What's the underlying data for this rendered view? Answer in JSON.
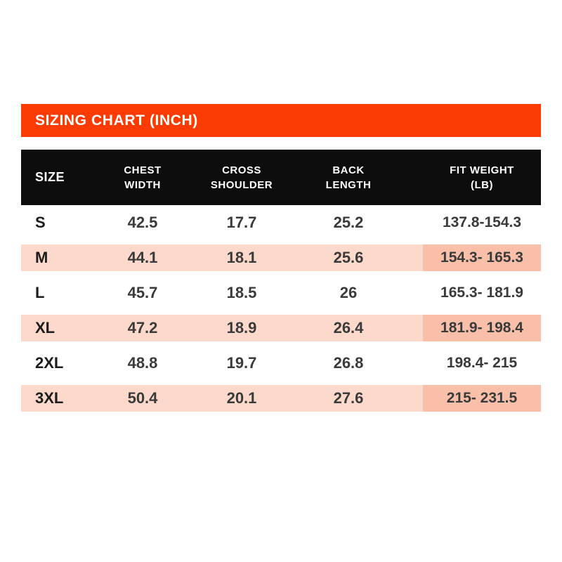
{
  "title_bar": {
    "label": "SIZING CHART (INCH)"
  },
  "table": {
    "header": {
      "columns": [
        {
          "id": "size",
          "label": "SIZE",
          "lines": [
            "SIZE"
          ]
        },
        {
          "id": "chest_width",
          "label": "CHEST WIDTH",
          "lines": [
            "CHEST",
            "WIDTH"
          ]
        },
        {
          "id": "cross_shoulder",
          "label": "CROSS SHOULDER",
          "lines": [
            "CROSS",
            "SHOULDER"
          ]
        },
        {
          "id": "back_length",
          "label": "BACK LENGTH",
          "lines": [
            "BACK",
            "LENGTH"
          ]
        },
        {
          "id": "fit_weight",
          "label": "FIT WEIGHT (LB)",
          "lines": [
            "FIT WEIGHT",
            "(LB)"
          ]
        }
      ]
    },
    "rows": [
      {
        "size": "S",
        "chest_width": "42.5",
        "cross_shoulder": "17.7",
        "back_length": "25.2",
        "fit_weight": "137.8-154.3",
        "highlighted": false
      },
      {
        "size": "M",
        "chest_width": "44.1",
        "cross_shoulder": "18.1",
        "back_length": "25.6",
        "fit_weight": "154.3- 165.3",
        "highlighted": true
      },
      {
        "size": "L",
        "chest_width": "45.7",
        "cross_shoulder": "18.5",
        "back_length": "26",
        "fit_weight": "165.3- 181.9",
        "highlighted": false
      },
      {
        "size": "XL",
        "chest_width": "47.2",
        "cross_shoulder": "18.9",
        "back_length": "26.4",
        "fit_weight": "181.9- 198.4",
        "highlighted": true
      },
      {
        "size": "2XL",
        "chest_width": "48.8",
        "cross_shoulder": "19.7",
        "back_length": "26.8",
        "fit_weight": "198.4- 215",
        "highlighted": false
      },
      {
        "size": "3XL",
        "chest_width": "50.4",
        "cross_shoulder": "20.1",
        "back_length": "27.6",
        "fit_weight": "215- 231.5",
        "highlighted": true
      }
    ]
  },
  "colors": {
    "accent_orange": "#FC3B02",
    "header_black": "#0D0D0D",
    "row_pink": "#FCD9CA",
    "fit_pink": "#F9BFA8",
    "text_dark": "#1C1C1C",
    "text_num": "#3A3A3A",
    "title_white": "#FFFFFF"
  },
  "chart_data": {
    "type": "table",
    "title": "SIZING CHART (INCH)",
    "columns": [
      "SIZE",
      "CHEST WIDTH",
      "CROSS SHOULDER",
      "BACK LENGTH",
      "FIT WEIGHT (LB)"
    ],
    "rows": [
      [
        "S",
        42.5,
        17.7,
        25.2,
        "137.8-154.3"
      ],
      [
        "M",
        44.1,
        18.1,
        25.6,
        "154.3-165.3"
      ],
      [
        "L",
        45.7,
        18.5,
        26,
        "165.3-181.9"
      ],
      [
        "XL",
        47.2,
        18.9,
        26.4,
        "181.9-198.4"
      ],
      [
        "2XL",
        48.8,
        19.7,
        26.8,
        "198.4-215"
      ],
      [
        "3XL",
        50.4,
        20.1,
        27.6,
        "215-231.5"
      ]
    ],
    "units": "inches; fit weight in lb",
    "layout": {
      "highlighted_rows": [
        "M",
        "XL",
        "3XL"
      ],
      "legend": "none",
      "grid": "off"
    }
  }
}
